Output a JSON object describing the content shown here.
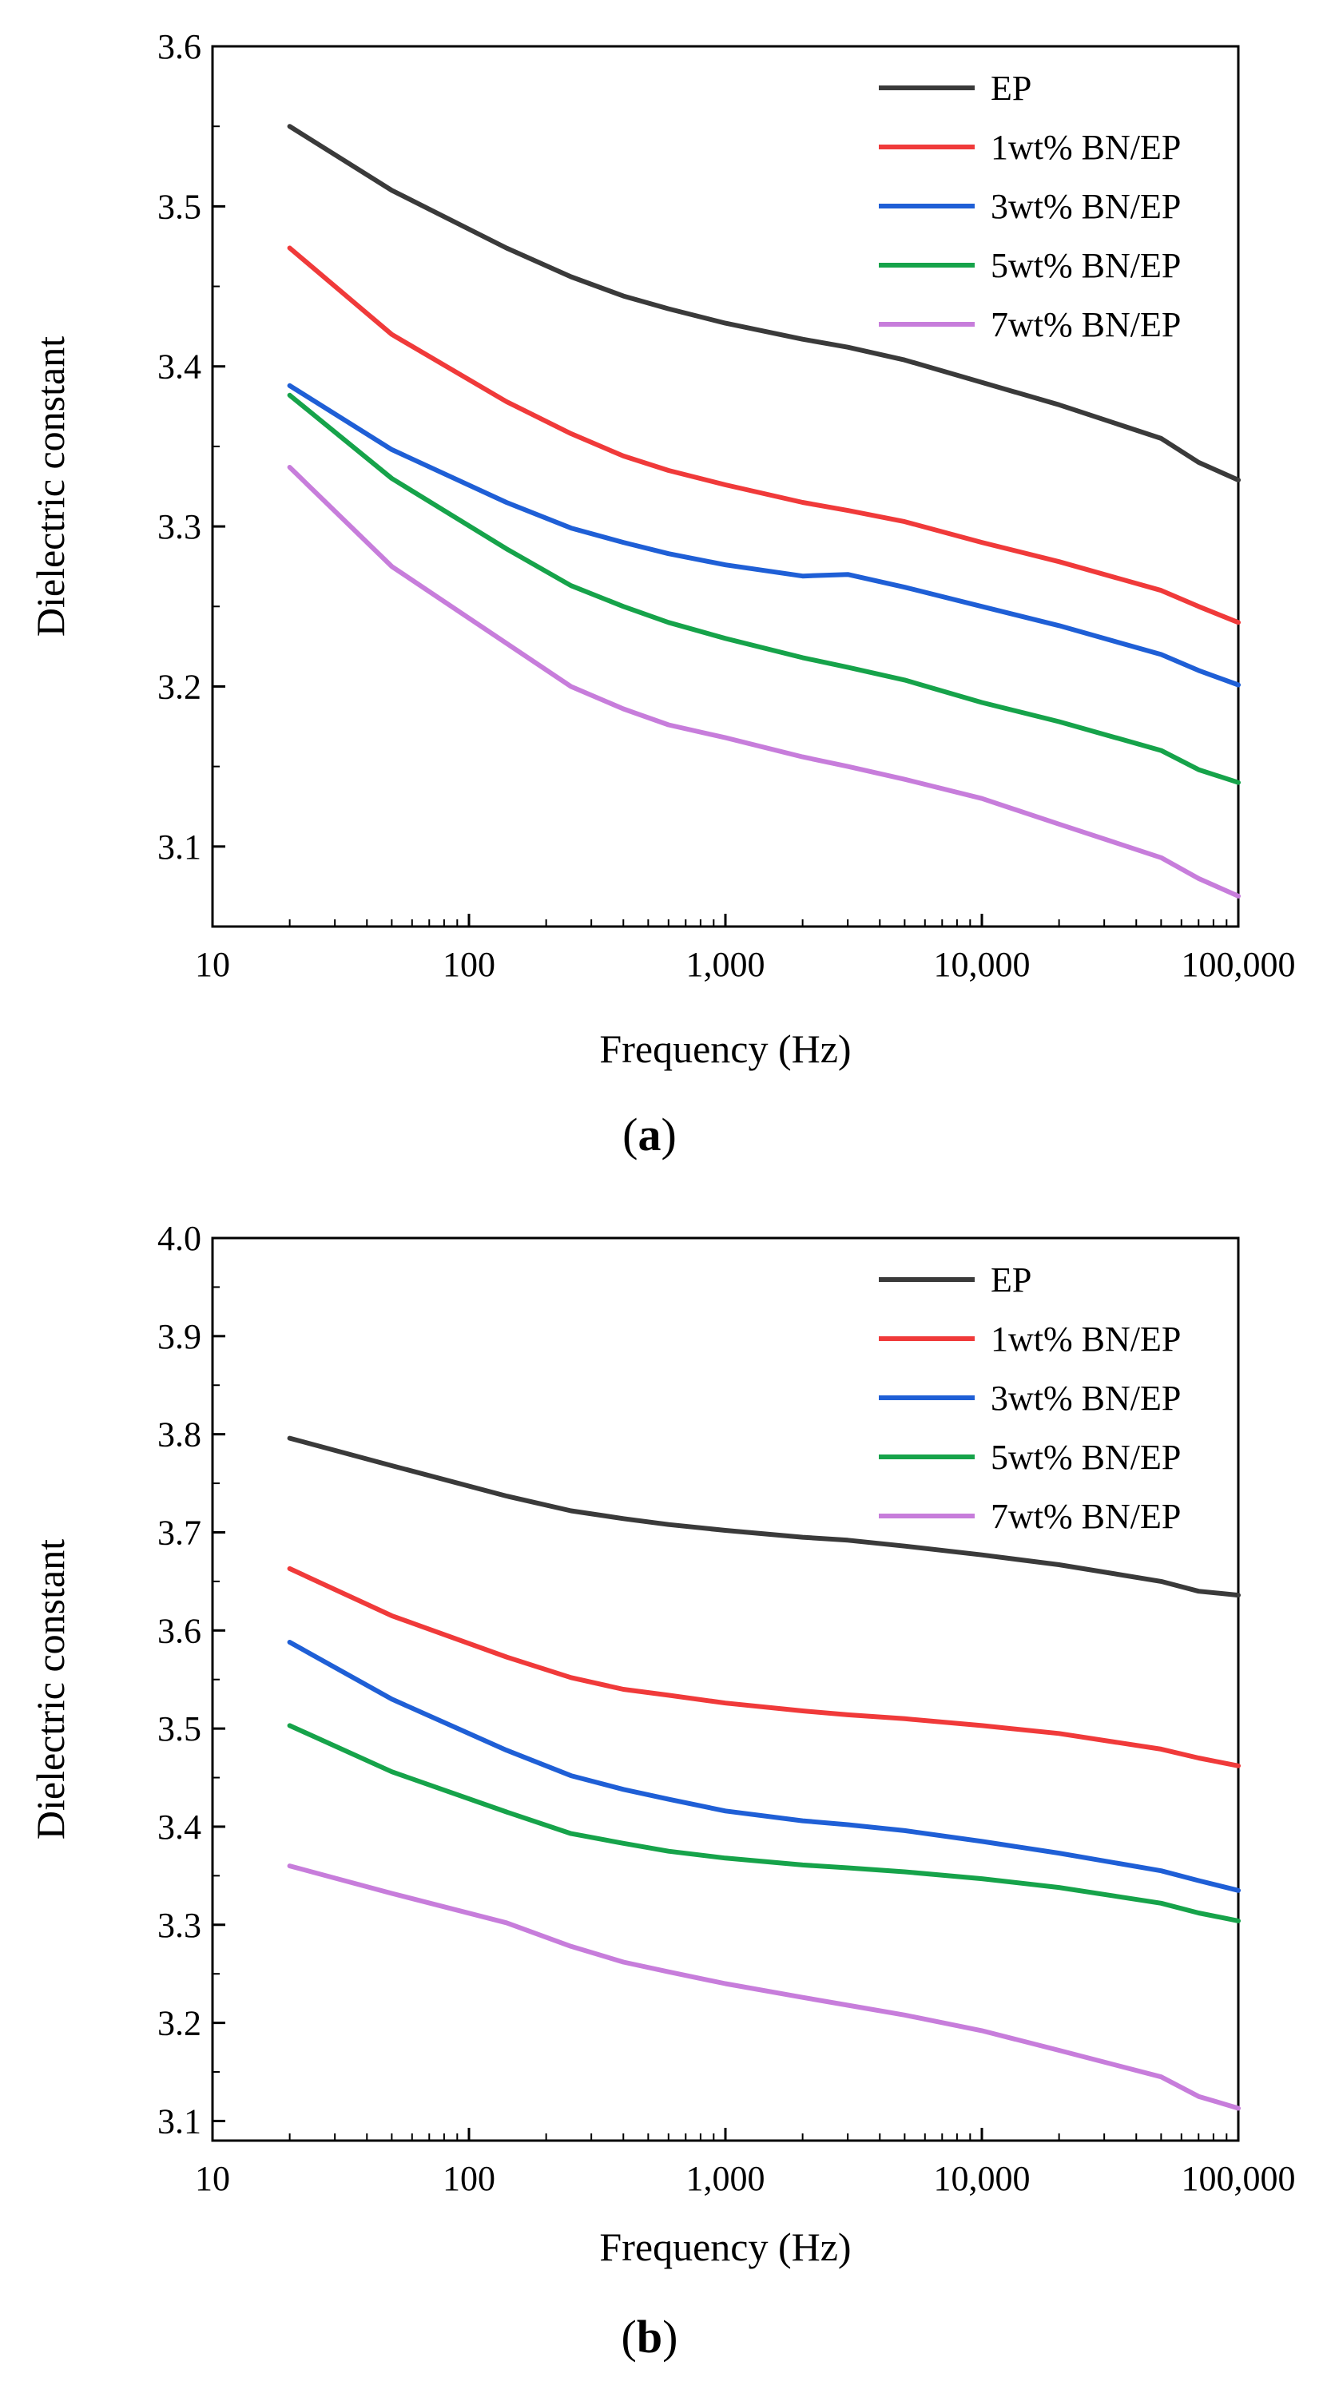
{
  "chart_data": [
    {
      "type": "line",
      "panel_label": "a",
      "xlabel": "Frequency (Hz)",
      "ylabel": "Dielectric constant",
      "x_scale": "log",
      "xlim": [
        10,
        100000
      ],
      "ylim": [
        3.05,
        3.6
      ],
      "x_ticks": [
        10,
        100,
        1000,
        10000,
        100000
      ],
      "x_tick_labels": [
        "10",
        "100",
        "1,000",
        "10,000",
        "100,000"
      ],
      "y_ticks": [
        3.1,
        3.2,
        3.3,
        3.4,
        3.5,
        3.6
      ],
      "y_tick_labels": [
        "3.1",
        "3.2",
        "3.3",
        "3.4",
        "3.5",
        "3.6"
      ],
      "legend_position": "top-right",
      "grid": false,
      "x": [
        20,
        50,
        140,
        250,
        400,
        600,
        1000,
        2000,
        3000,
        5000,
        10000,
        20000,
        50000,
        70000,
        100000
      ],
      "series": [
        {
          "name": "EP",
          "color": "#3a3a3a",
          "values": [
            3.55,
            3.51,
            3.474,
            3.456,
            3.444,
            3.436,
            3.427,
            3.417,
            3.412,
            3.404,
            3.39,
            3.376,
            3.355,
            3.34,
            3.329
          ]
        },
        {
          "name": "1wt% BN/EP",
          "color": "#f03a3a",
          "values": [
            3.474,
            3.42,
            3.378,
            3.358,
            3.344,
            3.335,
            3.326,
            3.315,
            3.31,
            3.303,
            3.29,
            3.278,
            3.26,
            3.25,
            3.24
          ]
        },
        {
          "name": "3wt% BN/EP",
          "color": "#1f5fd6",
          "values": [
            3.388,
            3.348,
            3.315,
            3.299,
            3.29,
            3.283,
            3.276,
            3.269,
            3.27,
            3.262,
            3.25,
            3.238,
            3.22,
            3.21,
            3.201
          ]
        },
        {
          "name": "5wt% BN/EP",
          "color": "#16a34a",
          "values": [
            3.382,
            3.33,
            3.286,
            3.263,
            3.25,
            3.24,
            3.23,
            3.218,
            3.212,
            3.204,
            3.19,
            3.178,
            3.16,
            3.148,
            3.14
          ]
        },
        {
          "name": "7wt% BN/EP",
          "color": "#c77ddb",
          "values": [
            3.337,
            3.275,
            3.227,
            3.2,
            3.186,
            3.176,
            3.168,
            3.156,
            3.15,
            3.142,
            3.13,
            3.114,
            3.093,
            3.08,
            3.069
          ]
        }
      ]
    },
    {
      "type": "line",
      "panel_label": "b",
      "xlabel": "Frequency (Hz)",
      "ylabel": "Dielectric constant",
      "x_scale": "log",
      "xlim": [
        10,
        100000
      ],
      "ylim": [
        3.08,
        4.0
      ],
      "x_ticks": [
        10,
        100,
        1000,
        10000,
        100000
      ],
      "x_tick_labels": [
        "10",
        "100",
        "1,000",
        "10,000",
        "100,000"
      ],
      "y_ticks": [
        3.1,
        3.2,
        3.3,
        3.4,
        3.5,
        3.6,
        3.7,
        3.8,
        3.9,
        4.0
      ],
      "y_tick_labels": [
        "3.1",
        "3.2",
        "3.3",
        "3.4",
        "3.5",
        "3.6",
        "3.7",
        "3.8",
        "3.9",
        "4.0"
      ],
      "legend_position": "top-right",
      "grid": false,
      "x": [
        20,
        50,
        140,
        250,
        400,
        600,
        1000,
        2000,
        3000,
        5000,
        10000,
        20000,
        50000,
        70000,
        100000
      ],
      "series": [
        {
          "name": "EP",
          "color": "#3a3a3a",
          "values": [
            3.796,
            3.768,
            3.737,
            3.722,
            3.714,
            3.708,
            3.702,
            3.695,
            3.692,
            3.686,
            3.677,
            3.667,
            3.65,
            3.64,
            3.636
          ]
        },
        {
          "name": "1wt% BN/EP",
          "color": "#f03a3a",
          "values": [
            3.663,
            3.615,
            3.573,
            3.552,
            3.54,
            3.534,
            3.526,
            3.518,
            3.514,
            3.51,
            3.503,
            3.495,
            3.479,
            3.47,
            3.462
          ]
        },
        {
          "name": "3wt% BN/EP",
          "color": "#1f5fd6",
          "values": [
            3.588,
            3.53,
            3.478,
            3.452,
            3.438,
            3.428,
            3.416,
            3.406,
            3.402,
            3.396,
            3.385,
            3.373,
            3.355,
            3.345,
            3.335
          ]
        },
        {
          "name": "5wt% BN/EP",
          "color": "#16a34a",
          "values": [
            3.503,
            3.456,
            3.415,
            3.393,
            3.383,
            3.375,
            3.368,
            3.361,
            3.358,
            3.354,
            3.347,
            3.338,
            3.322,
            3.312,
            3.304
          ]
        },
        {
          "name": "7wt% BN/EP",
          "color": "#c77ddb",
          "values": [
            3.36,
            3.332,
            3.302,
            3.278,
            3.262,
            3.252,
            3.24,
            3.226,
            3.218,
            3.208,
            3.192,
            3.172,
            3.145,
            3.125,
            3.113
          ]
        }
      ]
    }
  ]
}
